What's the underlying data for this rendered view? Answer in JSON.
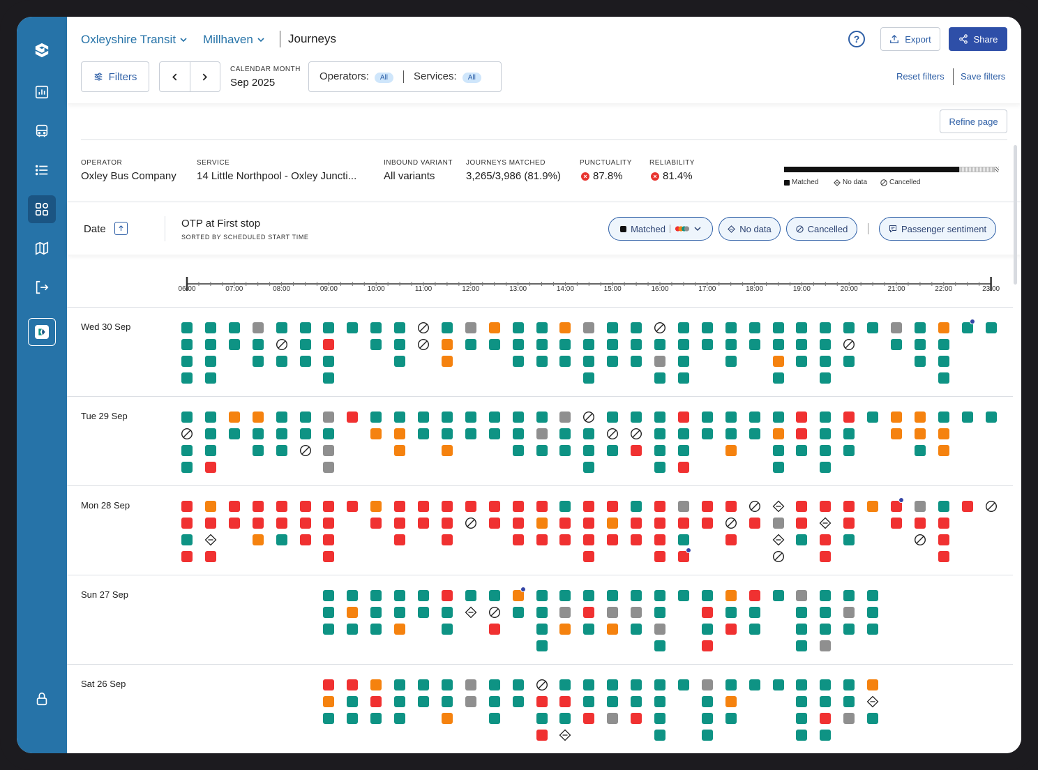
{
  "header": {
    "org": "Oxleyshire Transit",
    "area": "Millhaven",
    "page": "Journeys",
    "help": "?",
    "export_label": "Export",
    "share_label": "Share"
  },
  "filters": {
    "filters_label": "Filters",
    "calendar_label": "CALENDAR MONTH",
    "calendar_value": "Sep 2025",
    "operators_label": "Operators:",
    "operators_value": "All",
    "services_label": "Services:",
    "services_value": "All",
    "reset_label": "Reset filters",
    "save_label": "Save filters",
    "refine_label": "Refine page"
  },
  "summary": {
    "operator_label": "OPERATOR",
    "operator": "Oxley Bus Company",
    "service_label": "SERVICE",
    "service": "14 Little Northpool - Oxley Juncti...",
    "variant_label": "INBOUND VARIANT",
    "variant": "All variants",
    "matched_label": "JOURNEYS MATCHED",
    "matched": "3,265/3,986 (81.9%)",
    "punctuality_label": "PUNCTUALITY",
    "punctuality": "87.8%",
    "reliability_label": "RELIABILITY",
    "reliability": "81.4%",
    "legend_matched": "Matched",
    "legend_nodata": "No data",
    "legend_cancelled": "Cancelled",
    "matched_fraction": 0.819,
    "nodata_fraction": 0.165,
    "cancelled_fraction": 0.016
  },
  "table_header": {
    "date_label": "Date",
    "otp_title": "OTP at First stop",
    "otp_sub": "SORTED BY SCHEDULED START TIME",
    "chip_matched": "Matched",
    "chip_nodata": "No data",
    "chip_cancelled": "Cancelled",
    "chip_sentiment": "Passenger sentiment"
  },
  "timeline": {
    "ticks": [
      "06:00",
      "07:00",
      "08:00",
      "09:00",
      "10:00",
      "11:00",
      "12:00",
      "13:00",
      "14:00",
      "15:00",
      "16:00",
      "17:00",
      "18:00",
      "19:00",
      "20:00",
      "21:00",
      "22:00",
      "23:00"
    ]
  },
  "colors": {
    "on_time": "#0e9384",
    "early": "#f5820f",
    "late": "#f03131",
    "unknown": "#8f8f8f",
    "sidebar": "#2673a8",
    "accent": "#2e4fa8",
    "sentiment": "#3545a6"
  },
  "days": [
    {
      "label": "Wed 30 Sep",
      "columns": [
        {
          "hour": 6.0,
          "cells": "gggg"
        },
        {
          "hour": 6.5,
          "cells": "gggg"
        },
        {
          "hour": 7.0,
          "cells": "gg"
        },
        {
          "hour": 7.5,
          "cells": "xgg"
        },
        {
          "hour": 8.0,
          "cells": "gcg"
        },
        {
          "hour": 8.5,
          "cells": "ggg"
        },
        {
          "hour": 9.0,
          "cells": "grgg"
        },
        {
          "hour": 9.5,
          "cells": "g"
        },
        {
          "hour": 10.0,
          "cells": "gg"
        },
        {
          "hour": 10.5,
          "cells": "ggg"
        },
        {
          "hour": 11.0,
          "cells": "cc"
        },
        {
          "hour": 11.5,
          "cells": "goo"
        },
        {
          "hour": 12.0,
          "cells": "xg"
        },
        {
          "hour": 12.5,
          "cells": "og"
        },
        {
          "hour": 13.0,
          "cells": "ggg"
        },
        {
          "hour": 13.5,
          "cells": "ggg"
        },
        {
          "hour": 14.0,
          "cells": "ogg"
        },
        {
          "hour": 14.5,
          "cells": "xggg"
        },
        {
          "hour": 15.0,
          "cells": "ggg"
        },
        {
          "hour": 15.5,
          "cells": "ggg"
        },
        {
          "hour": 16.0,
          "cells": "cgxg"
        },
        {
          "hour": 16.5,
          "cells": "gggg"
        },
        {
          "hour": 17.0,
          "cells": "gg"
        },
        {
          "hour": 17.5,
          "cells": "ggg"
        },
        {
          "hour": 18.0,
          "cells": "gg"
        },
        {
          "hour": 18.5,
          "cells": "ggog"
        },
        {
          "hour": 19.0,
          "cells": "ggg"
        },
        {
          "hour": 19.5,
          "cells": "gggg"
        },
        {
          "hour": 20.0,
          "cells": "gcg"
        },
        {
          "hour": 20.5,
          "cells": "g"
        },
        {
          "hour": 21.0,
          "cells": "xg"
        },
        {
          "hour": 21.5,
          "cells": "ggg"
        },
        {
          "hour": 22.0,
          "cells": "oggg"
        },
        {
          "hour": 22.5,
          "cells": "g",
          "dot": 0
        },
        {
          "hour": 23.0,
          "cells": "g"
        }
      ]
    },
    {
      "label": "Tue 29 Sep",
      "columns": [
        {
          "hour": 6.0,
          "cells": "gcgg"
        },
        {
          "hour": 6.5,
          "cells": "gggr"
        },
        {
          "hour": 7.0,
          "cells": "og"
        },
        {
          "hour": 7.5,
          "cells": "ogg"
        },
        {
          "hour": 8.0,
          "cells": "ggg"
        },
        {
          "hour": 8.5,
          "cells": "ggc"
        },
        {
          "hour": 9.0,
          "cells": "xgxx"
        },
        {
          "hour": 9.5,
          "cells": "r"
        },
        {
          "hour": 10.0,
          "cells": "go"
        },
        {
          "hour": 10.5,
          "cells": "goo"
        },
        {
          "hour": 11.0,
          "cells": "gg"
        },
        {
          "hour": 11.5,
          "cells": "ggo"
        },
        {
          "hour": 12.0,
          "cells": "gg"
        },
        {
          "hour": 12.5,
          "cells": "gg"
        },
        {
          "hour": 13.0,
          "cells": "ggg"
        },
        {
          "hour": 13.5,
          "cells": "gxg"
        },
        {
          "hour": 14.0,
          "cells": "xgg"
        },
        {
          "hour": 14.5,
          "cells": "cggg"
        },
        {
          "hour": 15.0,
          "cells": "gcg"
        },
        {
          "hour": 15.5,
          "cells": "gcr"
        },
        {
          "hour": 16.0,
          "cells": "gggg"
        },
        {
          "hour": 16.5,
          "cells": "rggr"
        },
        {
          "hour": 17.0,
          "cells": "gg"
        },
        {
          "hour": 17.5,
          "cells": "ggo"
        },
        {
          "hour": 18.0,
          "cells": "gg"
        },
        {
          "hour": 18.5,
          "cells": "gogg"
        },
        {
          "hour": 19.0,
          "cells": "rrg"
        },
        {
          "hour": 19.5,
          "cells": "gggg"
        },
        {
          "hour": 20.0,
          "cells": "rgg"
        },
        {
          "hour": 20.5,
          "cells": "g"
        },
        {
          "hour": 21.0,
          "cells": "oo"
        },
        {
          "hour": 21.5,
          "cells": "oog"
        },
        {
          "hour": 22.0,
          "cells": "goo"
        },
        {
          "hour": 22.5,
          "cells": "g"
        },
        {
          "hour": 23.0,
          "cells": "g"
        }
      ]
    },
    {
      "label": "Mon 28 Sep",
      "columns": [
        {
          "hour": 6.0,
          "cells": "rrgr"
        },
        {
          "hour": 6.5,
          "cells": "ornr"
        },
        {
          "hour": 7.0,
          "cells": "rr"
        },
        {
          "hour": 7.5,
          "cells": "rro"
        },
        {
          "hour": 8.0,
          "cells": "rrg"
        },
        {
          "hour": 8.5,
          "cells": "rrr"
        },
        {
          "hour": 9.0,
          "cells": "rrrr"
        },
        {
          "hour": 9.5,
          "cells": "r"
        },
        {
          "hour": 10.0,
          "cells": "or"
        },
        {
          "hour": 10.5,
          "cells": "rrr"
        },
        {
          "hour": 11.0,
          "cells": "rr"
        },
        {
          "hour": 11.5,
          "cells": "rrr"
        },
        {
          "hour": 12.0,
          "cells": "rc"
        },
        {
          "hour": 12.5,
          "cells": "rr"
        },
        {
          "hour": 13.0,
          "cells": "rrr"
        },
        {
          "hour": 13.5,
          "cells": "ror"
        },
        {
          "hour": 14.0,
          "cells": "grr"
        },
        {
          "hour": 14.5,
          "cells": "rrrr"
        },
        {
          "hour": 15.0,
          "cells": "ror"
        },
        {
          "hour": 15.5,
          "cells": "grr"
        },
        {
          "hour": 16.0,
          "cells": "rrrr"
        },
        {
          "hour": 16.5,
          "cells": "xrgr",
          "dot": 3
        },
        {
          "hour": 17.0,
          "cells": "rr"
        },
        {
          "hour": 17.5,
          "cells": "rcr"
        },
        {
          "hour": 18.0,
          "cells": "cr"
        },
        {
          "hour": 18.5,
          "cells": "nxnc"
        },
        {
          "hour": 19.0,
          "cells": "rrg"
        },
        {
          "hour": 19.5,
          "cells": "rnrr"
        },
        {
          "hour": 20.0,
          "cells": "rrg"
        },
        {
          "hour": 20.5,
          "cells": "o"
        },
        {
          "hour": 21.0,
          "cells": "rr",
          "dot": 0
        },
        {
          "hour": 21.5,
          "cells": "xrc"
        },
        {
          "hour": 22.0,
          "cells": "grrr"
        },
        {
          "hour": 22.5,
          "cells": "r"
        },
        {
          "hour": 23.0,
          "cells": "c"
        }
      ]
    },
    {
      "label": "Sun 27 Sep",
      "columns": [
        {
          "hour": 9.0,
          "cells": "ggg"
        },
        {
          "hour": 9.5,
          "cells": "gog"
        },
        {
          "hour": 10.0,
          "cells": "ggg"
        },
        {
          "hour": 10.5,
          "cells": "ggo"
        },
        {
          "hour": 11.0,
          "cells": "gg"
        },
        {
          "hour": 11.5,
          "cells": "rgg"
        },
        {
          "hour": 12.0,
          "cells": "gn"
        },
        {
          "hour": 12.5,
          "cells": "gcr"
        },
        {
          "hour": 13.0,
          "cells": "og",
          "dot": 0
        },
        {
          "hour": 13.5,
          "cells": "gggg"
        },
        {
          "hour": 14.0,
          "cells": "gxo"
        },
        {
          "hour": 14.5,
          "cells": "grg"
        },
        {
          "hour": 15.0,
          "cells": "gxo"
        },
        {
          "hour": 15.5,
          "cells": "gxg"
        },
        {
          "hour": 16.0,
          "cells": "ggxg"
        },
        {
          "hour": 16.5,
          "cells": "g"
        },
        {
          "hour": 17.0,
          "cells": "grgr"
        },
        {
          "hour": 17.5,
          "cells": "ogr"
        },
        {
          "hour": 18.0,
          "cells": "rgg"
        },
        {
          "hour": 18.5,
          "cells": "g"
        },
        {
          "hour": 19.0,
          "cells": "xggg"
        },
        {
          "hour": 19.5,
          "cells": "gggx"
        },
        {
          "hour": 20.0,
          "cells": "gxg"
        },
        {
          "hour": 20.5,
          "cells": "ggg"
        }
      ]
    },
    {
      "label": "Sat 26 Sep",
      "columns": [
        {
          "hour": 9.0,
          "cells": "rog"
        },
        {
          "hour": 9.5,
          "cells": "rgg"
        },
        {
          "hour": 10.0,
          "cells": "org"
        },
        {
          "hour": 10.5,
          "cells": "ggg"
        },
        {
          "hour": 11.0,
          "cells": "gg"
        },
        {
          "hour": 11.5,
          "cells": "ggo"
        },
        {
          "hour": 12.0,
          "cells": "xx"
        },
        {
          "hour": 12.5,
          "cells": "ggg"
        },
        {
          "hour": 13.0,
          "cells": "gg"
        },
        {
          "hour": 13.5,
          "cells": "crgr"
        },
        {
          "hour": 14.0,
          "cells": "grgn"
        },
        {
          "hour": 14.5,
          "cells": "ggr"
        },
        {
          "hour": 15.0,
          "cells": "ggx"
        },
        {
          "hour": 15.5,
          "cells": "ggr"
        },
        {
          "hour": 16.0,
          "cells": "gggg"
        },
        {
          "hour": 16.5,
          "cells": "g"
        },
        {
          "hour": 17.0,
          "cells": "xggg"
        },
        {
          "hour": 17.5,
          "cells": "gog"
        },
        {
          "hour": 18.0,
          "cells": "g"
        },
        {
          "hour": 18.5,
          "cells": "g"
        },
        {
          "hour": 19.0,
          "cells": "gggg"
        },
        {
          "hour": 19.5,
          "cells": "ggrg"
        },
        {
          "hour": 20.0,
          "cells": "ggx"
        },
        {
          "hour": 20.5,
          "cells": "onG"
        }
      ]
    }
  ]
}
